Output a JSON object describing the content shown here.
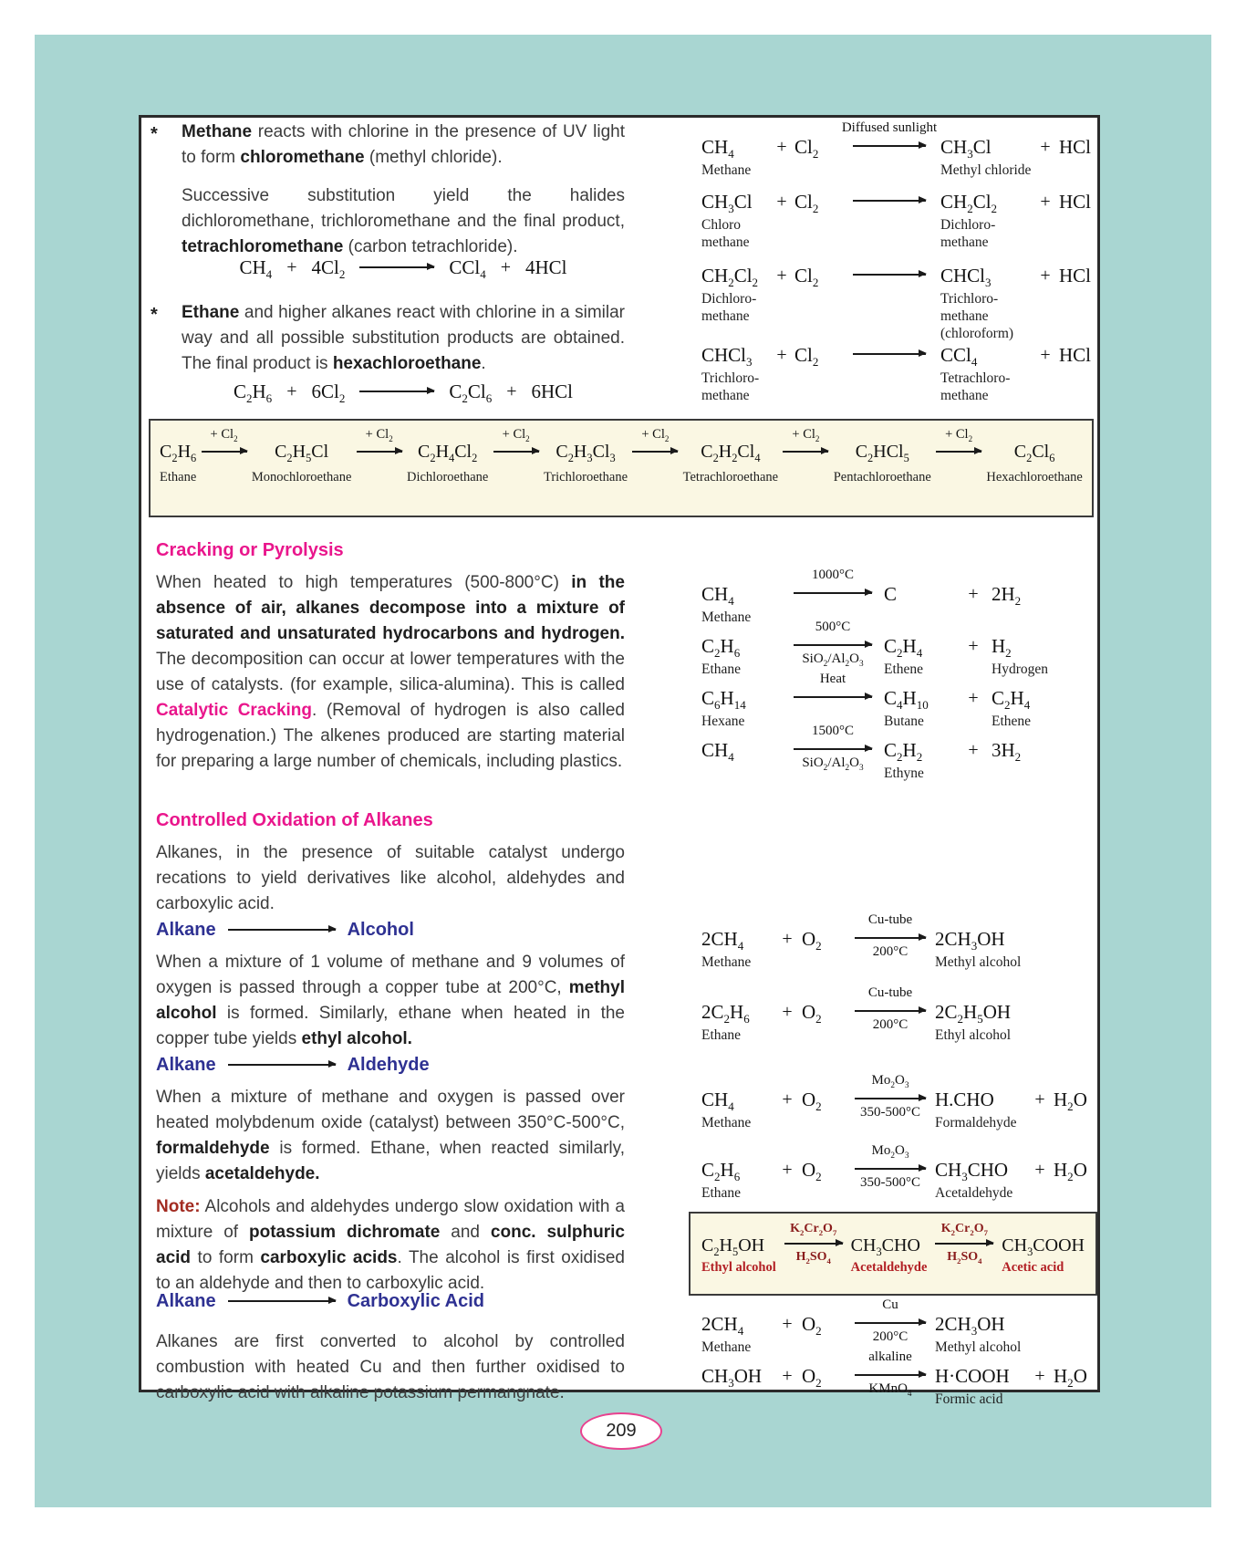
{
  "symbols": {
    "plus": "+",
    "bullet": "*"
  },
  "colors": {
    "teal_background": "#a9d6d2",
    "heading_pink": "#e9168c",
    "label_blue": "#2e3192",
    "note_red": "#a22b21",
    "box_label_red": "#b21f24",
    "reagent_maroon": "#8a1c1c",
    "box_cream": "#faf7e3"
  },
  "page_number": "209",
  "intro": {
    "bullet1": [
      {
        "t": "Methane",
        "b": 1
      },
      {
        "t": " reacts with chlorine in the presence of UV light to form "
      },
      {
        "t": "chloromethane",
        "b": 1
      },
      {
        "t": " (methyl chloride)."
      }
    ],
    "para1": [
      {
        "t": "Successive substitution yield the halides dichloromethane, trichloromethane and the final product, "
      },
      {
        "t": "tetrachloromethane",
        "b": 1
      },
      {
        "t": " (carbon tetrachloride)."
      }
    ],
    "eq_methane": {
      "r1": "CH4",
      "r2": "4Cl2",
      "p1": "CCl4",
      "p2": "4HCl"
    },
    "bullet2": [
      {
        "t": "Ethane",
        "b": 1
      },
      {
        "t": " and higher alkanes react with chlorine in a similar way and all possible substitution products are obtained. The final product is "
      },
      {
        "t": "hexachloroethane",
        "b": 1
      },
      {
        "t": "."
      }
    ],
    "eq_ethane": {
      "r1": "C2H6",
      "r2": "6Cl2",
      "p1": "C2Cl6",
      "p2": "6HCl"
    }
  },
  "chlorination": {
    "rows": [
      {
        "reactant": "CH4",
        "rname": "Methane",
        "reagent": "Cl2",
        "above": "Diffused sunlight",
        "product": "CH3Cl",
        "pname": "Methyl chloride",
        "byproduct": "HCl"
      },
      {
        "reactant": "CH3Cl",
        "rname": "Chloro\nmethane",
        "reagent": "Cl2",
        "above": "",
        "product": "CH2Cl2",
        "pname": "Dichloro-\nmethane",
        "byproduct": "HCl"
      },
      {
        "reactant": "CH2Cl2",
        "rname": "Dichloro-\nmethane",
        "reagent": "Cl2",
        "above": "",
        "product": "CHCl3",
        "pname": "Trichloro-\nmethane\n(chloroform)",
        "byproduct": "HCl"
      },
      {
        "reactant": "CHCl3",
        "rname": "Trichloro-\nmethane",
        "reagent": "Cl2",
        "above": "",
        "product": "CCl4",
        "pname": "Tetrachloro-\nmethane",
        "byproduct": "HCl"
      }
    ]
  },
  "chain": {
    "arrow_label": "+ Cl2",
    "steps": [
      {
        "formula": "C2H6",
        "name": "Ethane"
      },
      {
        "formula": "C2H5Cl",
        "name": "Monochloroethane"
      },
      {
        "formula": "C2H4Cl2",
        "name": "Dichloroethane"
      },
      {
        "formula": "C2H3Cl3",
        "name": "Trichloroethane"
      },
      {
        "formula": "C2H2Cl4",
        "name": "Tetrachloroethane"
      },
      {
        "formula": "C2HCl5",
        "name": "Pentachloroethane"
      },
      {
        "formula": "C2Cl6",
        "name": "Hexachloroethane"
      }
    ]
  },
  "cracking": {
    "heading": "Cracking or Pyrolysis",
    "para": [
      {
        "t": "When heated to high temperatures (500-800°C) "
      },
      {
        "t": "in the absence of air, alkanes decompose into a mixture of saturated and unsaturated hydrocarbons and hydrogen.",
        "b": 1
      },
      {
        "t": " The decomposition can occur at lower temperatures with the use of catalysts. (for example, silica-alumina). This is called "
      },
      {
        "t": "Catalytic Cracking",
        "b": 1,
        "c": "#e9168c"
      },
      {
        "t": ". (Removal of hydrogen is also called hydrogenation.) The alkenes produced are starting material for preparing a large number of chemicals, including plastics."
      }
    ],
    "rows": [
      {
        "reactant": "CH4",
        "rname": "Methane",
        "above": "1000°C",
        "below": "",
        "p1": "C",
        "p1name": "",
        "plus2": "+",
        "p2": "2H2",
        "p2name": ""
      },
      {
        "reactant": "C2H6",
        "rname": "Ethane",
        "above": "500°C",
        "below": "SiO2/Al2O3",
        "p1": "C2H4",
        "p1name": "Ethene",
        "plus2": "+",
        "p2": "H2",
        "p2name": "Hydrogen"
      },
      {
        "reactant": "C6H14",
        "rname": "Hexane",
        "above": "Heat",
        "below": "",
        "p1": "C4H10",
        "p1name": "Butane",
        "plus2": "+",
        "p2": "C2H4",
        "p2name": "Ethene"
      },
      {
        "reactant": "CH4",
        "rname": "",
        "above": "1500°C",
        "below": "SiO2/Al2O3",
        "p1": "C2H2",
        "p1name": "Ethyne",
        "plus2": "+",
        "p2": "3H2",
        "p2name": ""
      }
    ]
  },
  "oxidation": {
    "heading": "Controlled Oxidation of Alkanes",
    "para": [
      {
        "t": "Alkanes, in the presence of suitable catalyst undergo recations to yield derivatives like alcohol, aldehydes and carboxylic acid."
      }
    ],
    "alcohol": {
      "from": "Alkane",
      "to": "Alcohol",
      "para": [
        {
          "t": "When a mixture of 1 volume of methane and 9 volumes of oxygen is passed through a copper tube at 200°C, "
        },
        {
          "t": "methyl alcohol",
          "b": 1
        },
        {
          "t": " is formed. Similarly, ethane when heated in the copper tube yields "
        },
        {
          "t": "ethyl alcohol.",
          "b": 1
        }
      ],
      "rows": [
        {
          "r1": "2CH4",
          "rname": "Methane",
          "r2": "O2",
          "above": "Cu-tube",
          "below": "200°C",
          "product": "2CH3OH",
          "pname": "Methyl alcohol",
          "plus2": "",
          "p2": ""
        },
        {
          "r1": "2C2H6",
          "rname": "Ethane",
          "r2": "O2",
          "above": "Cu-tube",
          "below": "200°C",
          "product": "2C2H5OH",
          "pname": "Ethyl alcohol",
          "plus2": "",
          "p2": ""
        }
      ]
    },
    "aldehyde": {
      "from": "Alkane",
      "to": "Aldehyde",
      "para": [
        {
          "t": "When a mixture of methane and oxygen is passed over heated molybdenum oxide (catalyst) between 350°C-500°C, "
        },
        {
          "t": "formaldehyde",
          "b": 1
        },
        {
          "t": " is formed. Ethane, when reacted similarly, yields "
        },
        {
          "t": "acetaldehyde.",
          "b": 1
        }
      ],
      "rows": [
        {
          "r1": "CH4",
          "rname": "Methane",
          "r2": "O2",
          "above": "Mo2O3",
          "below": "350-500°C",
          "product": "H.CHO",
          "pname": "Formaldehyde",
          "plus2": "+",
          "p2": "H2O"
        },
        {
          "r1": "C2H6",
          "rname": "Ethane",
          "r2": "O2",
          "above": "Mo2O3",
          "below": "350-500°C",
          "product": "CH3CHO",
          "pname": "Acetaldehyde",
          "plus2": "+",
          "p2": "H2O"
        }
      ]
    },
    "note": [
      {
        "t": "Note:",
        "b": 1,
        "c": "#a22b21"
      },
      {
        "t": " Alcohols and aldehydes undergo slow oxidation with a mixture of "
      },
      {
        "t": "potassium dichromate",
        "b": 1
      },
      {
        "t": " and "
      },
      {
        "t": "conc. sulphuric acid",
        "b": 1
      },
      {
        "t": " to form "
      },
      {
        "t": "carboxylic acids",
        "b": 1
      },
      {
        "t": ". The alcohol is first oxidised to an aldehyde and then to carboxylic acid."
      }
    ],
    "dichromate": {
      "above": "K2Cr2O7",
      "below": "H2SO4",
      "steps": [
        {
          "formula": "C2H5OH",
          "name": "Ethyl alcohol"
        },
        {
          "formula": "CH3CHO",
          "name": "Acetaldehyde"
        },
        {
          "formula": "CH3COOH",
          "name": "Acetic acid"
        }
      ]
    },
    "carboxylic": {
      "from": "Alkane",
      "to": "Carboxylic Acid",
      "para": [
        {
          "t": "Alkanes are first converted to alcohol by controlled combustion with heated Cu and then further oxidised to carboxylic acid with alkaline potassium permangnate."
        }
      ],
      "rows": [
        {
          "r1": "2CH4",
          "rname": "Methane",
          "r2": "O2",
          "above": "Cu",
          "below": "200°C",
          "product": "2CH3OH",
          "pname": "Methyl alcohol",
          "plus2": "",
          "p2": ""
        },
        {
          "r1": "CH3OH",
          "rname": "",
          "r2": "O2",
          "above": "alkaline",
          "below": "KMnO4",
          "product": "H·COOH",
          "pname": "Formic acid",
          "plus2": "+",
          "p2": "H2O"
        }
      ]
    }
  }
}
